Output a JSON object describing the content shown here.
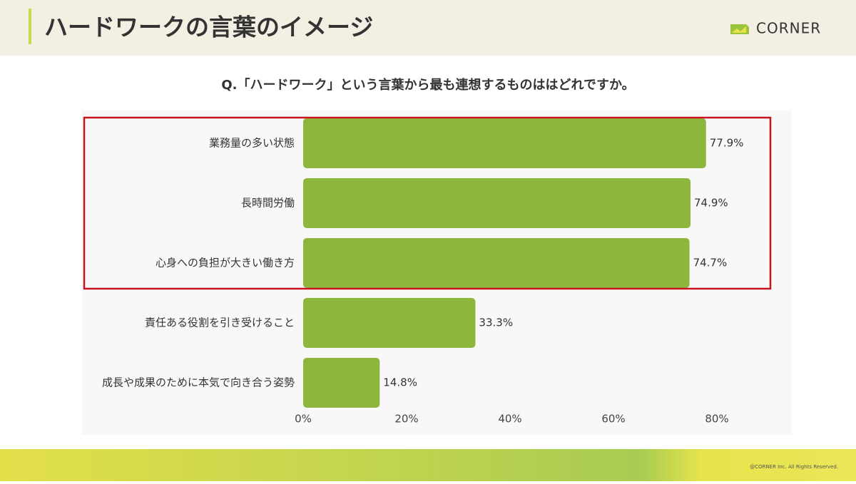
{
  "header": {
    "title": "ハードワークの言葉のイメージ",
    "logo": "CORNER"
  },
  "chart_data": {
    "type": "hbar",
    "title": "Q.「ハードワーク」という言葉から最も連想するものははどれですか。",
    "categories": [
      "業務量の多い状態",
      "長時間労働",
      "心身への負担が大きい働き方",
      "責任ある役割を引き受けること",
      "成長や成果のために本気で向き合う姿勢"
    ],
    "values": [
      77.9,
      74.9,
      74.7,
      33.3,
      14.8
    ],
    "value_labels": [
      "77.9%",
      "74.9%",
      "74.7%",
      "33.3%",
      "14.8%"
    ],
    "color": "#8cb63c",
    "xlim": [
      0,
      80
    ],
    "xticks": [
      {
        "value": 0,
        "label": "0%"
      },
      {
        "value": 20,
        "label": "20%"
      },
      {
        "value": 40,
        "label": "40%"
      },
      {
        "value": 60,
        "label": "60%"
      },
      {
        "value": 80,
        "label": "80%"
      }
    ]
  },
  "footer": {
    "copyright": "@CORNER Inc. All Rights Reserved."
  }
}
